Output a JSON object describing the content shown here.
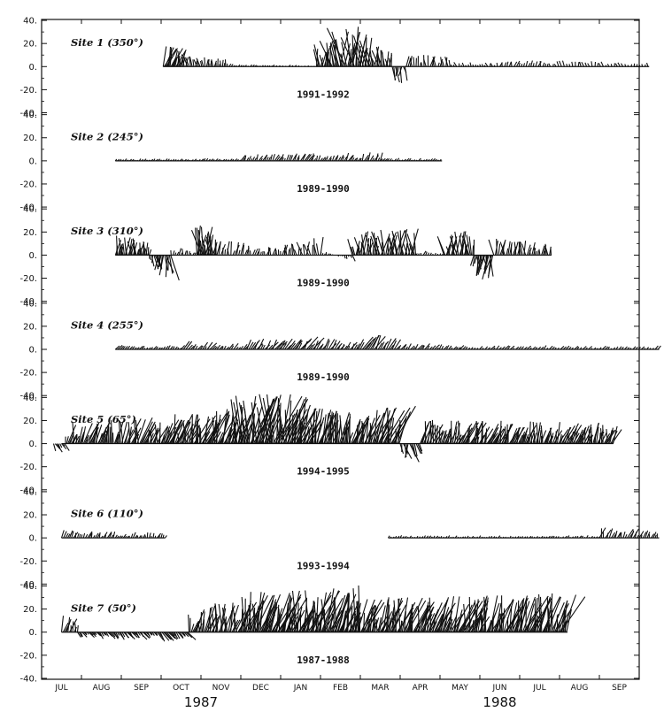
{
  "chart_data": {
    "type": "line",
    "description_style": "current-vector stick plots, 7 stacked panels sharing a seasonal time axis",
    "x_months": [
      "JUL",
      "AUG",
      "SEP",
      "OCT",
      "NOV",
      "DEC",
      "JAN",
      "FEB",
      "MAR",
      "APR",
      "MAY",
      "JUN",
      "JUL",
      "AUG",
      "SEP"
    ],
    "years": [
      {
        "label": "1987",
        "month_index": 3.5
      },
      {
        "label": "1988",
        "month_index": 11.0
      }
    ],
    "ylim": [
      -40,
      40
    ],
    "yticks": [
      "40.",
      "20.",
      "0.",
      "-20.",
      "-40."
    ],
    "panels": [
      {
        "site": "Site 1 (350°)",
        "period": "1991-1992",
        "start_month": 2.55,
        "end_month": 14.75,
        "sticks": [
          {
            "t": [
              2.55,
              3.0
            ],
            "amp": [
              20,
              12
            ],
            "angle": 0.35,
            "seg": 0.025
          },
          {
            "t": [
              3.0,
              4.2
            ],
            "amp": [
              11,
              5
            ],
            "angle": -0.05,
            "seg": 0.04
          },
          {
            "t": [
              4.2,
              5.3
            ],
            "amp": [
              3,
              1
            ],
            "angle": 0.6,
            "seg": 0.06
          },
          {
            "t": [
              5.3,
              6.4
            ],
            "amp": [
              2,
              1
            ],
            "angle": 1.2,
            "seg": 0.08
          },
          {
            "t": [
              6.4,
              7.3
            ],
            "amp": [
              16,
              34
            ],
            "angle": -0.12,
            "seg": 0.028
          },
          {
            "t": [
              7.3,
              8.3
            ],
            "amp": [
              34,
              10
            ],
            "angle": -0.15,
            "seg": 0.028
          },
          {
            "t": [
              8.3,
              8.65
            ],
            "amp": [
              -16,
              -12
            ],
            "angle": 0.1,
            "seg": 0.04
          },
          {
            "t": [
              8.65,
              9.8
            ],
            "amp": [
              8,
              10
            ],
            "angle": 0.05,
            "seg": 0.05
          },
          {
            "t": [
              9.8,
              11.0
            ],
            "amp": [
              4,
              3
            ],
            "angle": -0.4,
            "seg": 0.06
          },
          {
            "t": [
              11.0,
              12.2
            ],
            "amp": [
              6,
              4
            ],
            "angle": 0.3,
            "seg": 0.06
          },
          {
            "t": [
              12.2,
              14.75
            ],
            "amp": [
              5,
              3
            ],
            "angle": -0.2,
            "seg": 0.07
          }
        ]
      },
      {
        "site": "Site 2 (245°)",
        "period": "1989-1990",
        "start_month": 1.35,
        "end_month": 9.55,
        "sticks": [
          {
            "t": [
              1.35,
              4.5
            ],
            "amp": [
              2,
              2
            ],
            "angle": 1.2,
            "seg": 0.06
          },
          {
            "t": [
              4.5,
              8.0
            ],
            "amp": [
              5,
              7
            ],
            "angle": 0.6,
            "seg": 0.05
          },
          {
            "t": [
              8.0,
              9.55
            ],
            "amp": [
              3,
              2
            ],
            "angle": 1.3,
            "seg": 0.06
          }
        ]
      },
      {
        "site": "Site 3 (310°)",
        "period": "1989-1990",
        "start_month": 1.35,
        "end_month": 12.3,
        "sticks": [
          {
            "t": [
              1.35,
              2.2
            ],
            "amp": [
              15,
              12
            ],
            "angle": 0.05,
            "seg": 0.025
          },
          {
            "t": [
              2.2,
              2.75
            ],
            "amp": [
              -8,
              -20
            ],
            "angle": 0.1,
            "seg": 0.03
          },
          {
            "t": [
              2.75,
              3.4
            ],
            "amp": [
              6,
              4
            ],
            "angle": 0.2,
            "seg": 0.05
          },
          {
            "t": [
              3.4,
              3.9
            ],
            "amp": [
              28,
              16
            ],
            "angle": -0.05,
            "seg": 0.02
          },
          {
            "t": [
              3.9,
              5.6
            ],
            "amp": [
              12,
              6
            ],
            "angle": 0.2,
            "seg": 0.05
          },
          {
            "t": [
              5.6,
              6.5
            ],
            "amp": [
              8,
              14
            ],
            "angle": -0.1,
            "seg": 0.05
          },
          {
            "t": [
              6.5,
              7.3
            ],
            "amp": [
              4,
              -5
            ],
            "angle": 0.3,
            "seg": 0.05
          },
          {
            "t": [
              7.3,
              8.9
            ],
            "amp": [
              18,
              22
            ],
            "angle": 0.05,
            "seg": 0.03
          },
          {
            "t": [
              8.9,
              9.6
            ],
            "amp": [
              4,
              2
            ],
            "angle": 0.4,
            "seg": 0.06
          },
          {
            "t": [
              9.6,
              10.35
            ],
            "amp": [
              16,
              20
            ],
            "angle": -0.05,
            "seg": 0.03
          },
          {
            "t": [
              10.35,
              10.85
            ],
            "amp": [
              -14,
              -20
            ],
            "angle": 0.0,
            "seg": 0.025
          },
          {
            "t": [
              10.85,
              12.3
            ],
            "amp": [
              14,
              8
            ],
            "angle": 0.05,
            "seg": 0.04
          }
        ]
      },
      {
        "site": "Site 4 (255°)",
        "period": "1989-1990",
        "start_month": 1.35,
        "end_month": 15.0,
        "sticks": [
          {
            "t": [
              1.35,
              3.0
            ],
            "amp": [
              4,
              3
            ],
            "angle": 1.1,
            "seg": 0.06
          },
          {
            "t": [
              3.0,
              4.6
            ],
            "amp": [
              7,
              5
            ],
            "angle": 1.0,
            "seg": 0.06
          },
          {
            "t": [
              4.6,
              6.0
            ],
            "amp": [
              8,
              10
            ],
            "angle": 0.9,
            "seg": 0.05
          },
          {
            "t": [
              6.0,
              7.4
            ],
            "amp": [
              12,
              6
            ],
            "angle": 0.8,
            "seg": 0.05
          },
          {
            "t": [
              7.4,
              8.4
            ],
            "amp": [
              14,
              8
            ],
            "angle": 0.7,
            "seg": 0.05
          },
          {
            "t": [
              8.4,
              10.0
            ],
            "amp": [
              6,
              4
            ],
            "angle": 1.0,
            "seg": 0.06
          },
          {
            "t": [
              10.0,
              15.0
            ],
            "amp": [
              4,
              3
            ],
            "angle": 1.2,
            "seg": 0.07
          }
        ]
      },
      {
        "site": "Site 5 (65°)",
        "period": "1994-1995",
        "start_month": 0.0,
        "end_month": 13.85,
        "sticks": [
          {
            "t": [
              -0.2,
              0.1
            ],
            "amp": [
              -8,
              -6
            ],
            "angle": 0.6,
            "seg": 0.04
          },
          {
            "t": [
              0.1,
              2.5
            ],
            "amp": [
              16,
              22
            ],
            "angle": 0.3,
            "seg": 0.03
          },
          {
            "t": [
              2.5,
              4.4
            ],
            "amp": [
              22,
              28
            ],
            "angle": 0.3,
            "seg": 0.025
          },
          {
            "t": [
              4.4,
              6.0
            ],
            "amp": [
              36,
              40
            ],
            "angle": 0.2,
            "seg": 0.02
          },
          {
            "t": [
              6.0,
              7.6
            ],
            "amp": [
              28,
              22
            ],
            "angle": 0.3,
            "seg": 0.025
          },
          {
            "t": [
              7.6,
              8.5
            ],
            "amp": [
              26,
              32
            ],
            "angle": 0.3,
            "seg": 0.025
          },
          {
            "t": [
              8.5,
              9.0
            ],
            "amp": [
              -12,
              -18
            ],
            "angle": 0.2,
            "seg": 0.04
          },
          {
            "t": [
              9.0,
              13.85
            ],
            "amp": [
              18,
              16
            ],
            "angle": 0.35,
            "seg": 0.028
          }
        ]
      },
      {
        "site": "Site 6 (110°)",
        "period": "1993-1994",
        "start_month": 0.0,
        "end_month": 15.0,
        "segments": [
          [
            0.0,
            2.6
          ],
          [
            8.2,
            15.0
          ]
        ],
        "sticks": [
          {
            "t": [
              0.0,
              2.6
            ],
            "amp": [
              6,
              4
            ],
            "angle": 0.5,
            "seg": 0.05
          },
          {
            "t": [
              8.2,
              13.5
            ],
            "amp": [
              2,
              2
            ],
            "angle": 0.9,
            "seg": 0.06
          },
          {
            "t": [
              13.5,
              15.0
            ],
            "amp": [
              9,
              6
            ],
            "angle": 0.4,
            "seg": 0.05
          }
        ]
      },
      {
        "site": "Site 7 (50°)",
        "period": "1987-1988",
        "start_month": 0.0,
        "end_month": 12.7,
        "sticks": [
          {
            "t": [
              0.0,
              0.4
            ],
            "amp": [
              14,
              8
            ],
            "angle": 0.3,
            "seg": 0.04
          },
          {
            "t": [
              0.4,
              3.2
            ],
            "amp": [
              -5,
              -8
            ],
            "angle": 0.9,
            "seg": 0.04
          },
          {
            "t": [
              3.2,
              4.5
            ],
            "amp": [
              18,
              26
            ],
            "angle": 0.25,
            "seg": 0.03
          },
          {
            "t": [
              4.5,
              7.6
            ],
            "amp": [
              30,
              36
            ],
            "angle": 0.3,
            "seg": 0.022
          },
          {
            "t": [
              7.6,
              12.7
            ],
            "amp": [
              26,
              30
            ],
            "angle": 0.35,
            "seg": 0.025
          }
        ]
      }
    ]
  }
}
